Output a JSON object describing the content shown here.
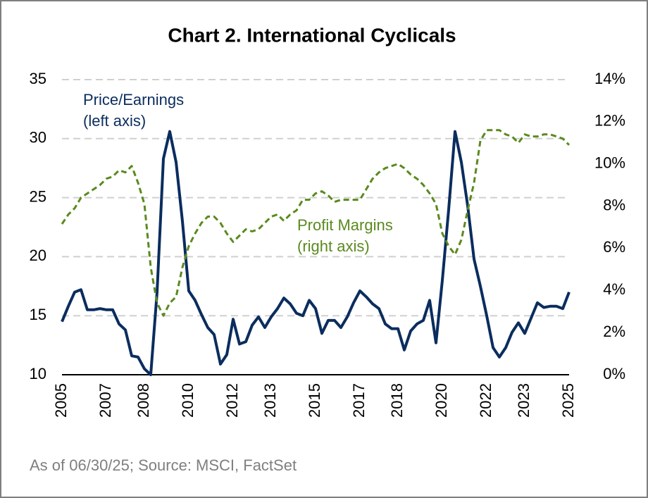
{
  "chart_data": {
    "type": "line",
    "title": "Chart 2. International Cyclicals",
    "footnote": "As of 06/30/25; Source: MSCI, FactSet",
    "annotations": [
      {
        "lines": [
          "Price/Earnings",
          "(left axis)"
        ],
        "series": 0
      },
      {
        "lines": [
          "Profit Margins",
          "(right axis)"
        ],
        "series": 1
      }
    ],
    "categories": [
      "2005",
      null,
      null,
      null,
      null,
      null,
      null,
      "2007",
      null,
      null,
      null,
      null,
      null,
      "2008",
      null,
      null,
      null,
      null,
      null,
      null,
      "2010",
      null,
      null,
      null,
      null,
      null,
      null,
      "2012",
      null,
      null,
      null,
      null,
      null,
      "2013",
      null,
      null,
      null,
      null,
      null,
      null,
      "2015",
      null,
      null,
      null,
      null,
      null,
      null,
      "2017",
      null,
      null,
      null,
      null,
      null,
      "2018",
      null,
      null,
      null,
      null,
      null,
      null,
      "2020",
      null,
      null,
      null,
      null,
      null,
      null,
      "2022",
      null,
      null,
      null,
      null,
      null,
      "2023",
      null,
      null,
      null,
      null,
      null,
      null,
      "2025"
    ],
    "series": [
      {
        "name": "Price/Earnings",
        "color": "#0b2d5e",
        "dashed": false,
        "values": [
          14.5,
          15.8,
          17.0,
          17.2,
          15.5,
          15.5,
          15.6,
          15.5,
          15.5,
          14.3,
          13.8,
          11.6,
          11.5,
          10.5,
          10.0,
          17.0,
          28.3,
          30.6,
          28.0,
          23.0,
          17.1,
          16.3,
          15.1,
          14.0,
          13.4,
          10.9,
          11.7,
          14.7,
          12.6,
          12.8,
          14.2,
          14.9,
          14.0,
          14.9,
          15.6,
          16.5,
          16.0,
          15.2,
          15.0,
          16.3,
          15.6,
          13.5,
          14.6,
          14.6,
          14.0,
          14.9,
          16.1,
          17.1,
          16.6,
          16.0,
          15.6,
          14.3,
          13.9,
          13.9,
          12.1,
          13.7,
          14.3,
          14.6,
          16.3,
          12.7,
          18.0,
          24.0,
          30.6,
          28.0,
          24.3,
          19.8,
          17.5,
          15.0,
          12.3,
          11.5,
          12.3,
          13.6,
          14.4,
          13.5,
          14.8,
          16.1,
          15.7,
          15.8,
          15.8,
          15.6,
          17.0
        ]
      },
      {
        "name": "Profit Margins",
        "color": "#5a8a1e",
        "dashed": true,
        "axis": "y2",
        "values": [
          7.15,
          7.6,
          7.9,
          8.4,
          8.6,
          8.8,
          9.0,
          9.3,
          9.4,
          9.7,
          9.6,
          9.9,
          9.1,
          8.1,
          5.1,
          3.4,
          2.8,
          3.4,
          3.7,
          5.1,
          6.1,
          6.7,
          7.2,
          7.5,
          7.5,
          7.2,
          6.7,
          6.3,
          6.6,
          6.9,
          6.8,
          6.9,
          7.2,
          7.5,
          7.6,
          7.3,
          7.6,
          7.8,
          8.3,
          8.3,
          8.6,
          8.7,
          8.5,
          8.2,
          8.3,
          8.3,
          8.3,
          8.3,
          8.8,
          9.3,
          9.6,
          9.8,
          9.9,
          10.0,
          9.8,
          9.5,
          9.3,
          9.0,
          8.6,
          8.1,
          6.7,
          6.1,
          5.7,
          6.4,
          7.8,
          9.1,
          11.1,
          11.6,
          11.6,
          11.6,
          11.4,
          11.3,
          11.0,
          11.4,
          11.3,
          11.3,
          11.4,
          11.4,
          11.3,
          11.2,
          10.9
        ]
      }
    ],
    "ylim": [
      10,
      35
    ],
    "yticks": [
      10,
      15,
      20,
      25,
      30,
      35
    ],
    "y2lim": [
      0,
      14
    ],
    "y2ticks": [
      {
        "value": 0,
        "label": "0%"
      },
      {
        "value": 2,
        "label": "2%"
      },
      {
        "value": 4,
        "label": "4%"
      },
      {
        "value": 6,
        "label": "6%"
      },
      {
        "value": 8,
        "label": "8%"
      },
      {
        "value": 10,
        "label": "10%"
      },
      {
        "value": 12,
        "label": "12%"
      },
      {
        "value": 14,
        "label": "14%"
      }
    ],
    "grid": true
  }
}
